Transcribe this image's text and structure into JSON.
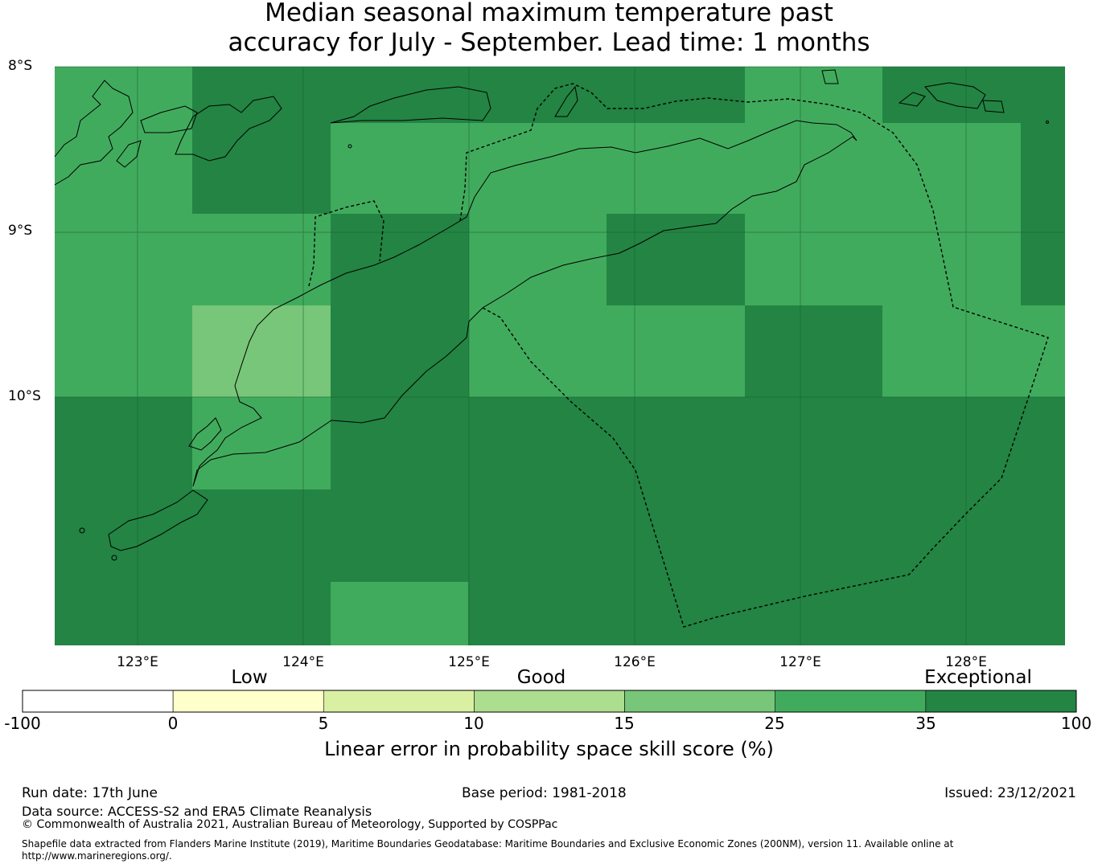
{
  "title": {
    "line1": "Median seasonal maximum temperature past",
    "line2": "accuracy for July - September. Lead time: 1 months"
  },
  "map": {
    "lat_labels": [
      "8°S",
      "9°S",
      "10°S"
    ],
    "lon_labels": [
      "123°E",
      "124°E",
      "125°E",
      "126°E",
      "127°E",
      "128°E"
    ],
    "colors": {
      "exceptional": "#238443",
      "good_high": "#41ab5d",
      "good_mid": "#78c679",
      "gridline": "#1b5e33",
      "coastline": "#000000"
    }
  },
  "colorbar": {
    "category_labels": [
      "Low",
      "Good",
      "Exceptional"
    ],
    "tick_labels": [
      "-100",
      "0",
      "5",
      "10",
      "15",
      "25",
      "35",
      "100"
    ],
    "bins": [
      {
        "from": -100,
        "to": 0,
        "color": "#ffffff"
      },
      {
        "from": 0,
        "to": 5,
        "color": "#ffffcc"
      },
      {
        "from": 5,
        "to": 10,
        "color": "#d9f0a3"
      },
      {
        "from": 10,
        "to": 15,
        "color": "#addd8e"
      },
      {
        "from": 15,
        "to": 25,
        "color": "#78c679"
      },
      {
        "from": 25,
        "to": 35,
        "color": "#41ab5d"
      },
      {
        "from": 35,
        "to": 100,
        "color": "#238443"
      }
    ],
    "label": "Linear error in probability space skill score (%)"
  },
  "footer": {
    "run_date": "Run date: 17th June",
    "base_period": "Base period: 1981-2018",
    "issued": "Issued: 23/12/2021",
    "data_source": "Data source: ACCESS-S2 and ERA5 Climate Reanalysis",
    "copyright": "© Commonwealth of Australia 2021, Australian Bureau of Meteorology, Supported by COSPPac",
    "shapefile_line1": "Shapefile data extracted from Flanders Marine Institute (2019), Maritime Boundaries Geodatabase: Maritime Boundaries and Exclusive Economic Zones (200NM), version 11. Available online at",
    "shapefile_line2": "http://www.marineregions.org/."
  }
}
